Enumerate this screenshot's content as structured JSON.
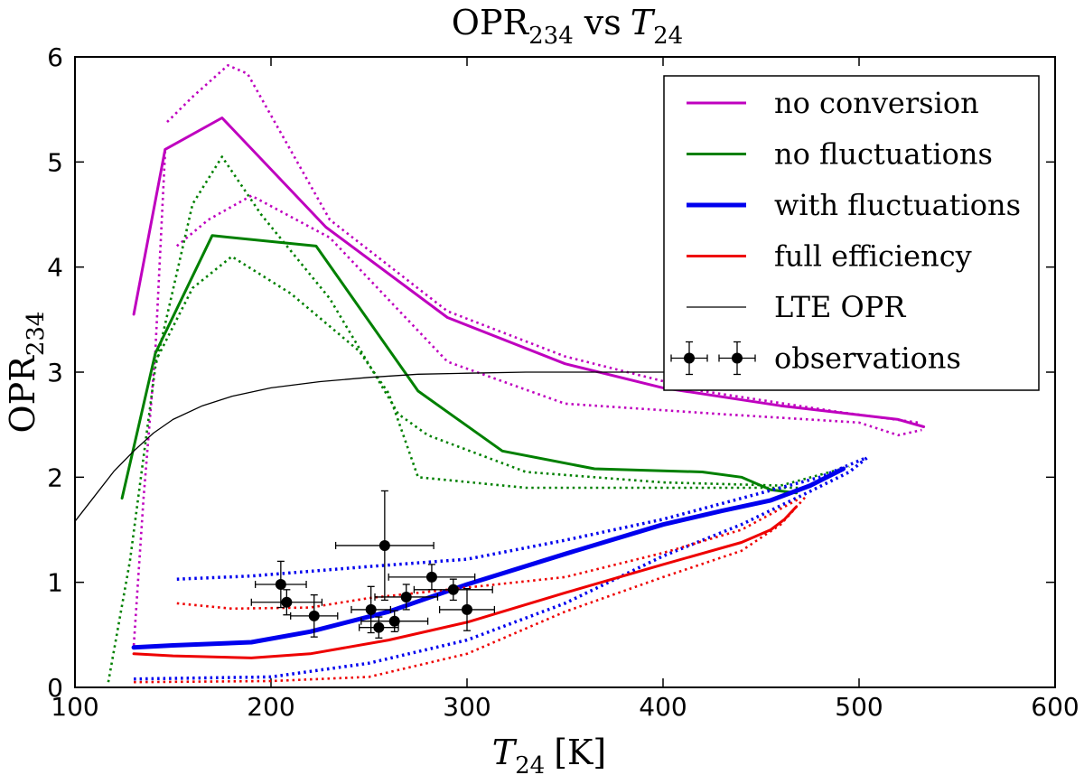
{
  "chart_data": {
    "type": "line",
    "title": "OPR",
    "title_sub": "234",
    "title_vs": "vs",
    "title_T": "T",
    "title_T_sub": "24",
    "xlabel_T": "T",
    "xlabel_sub": "24",
    "xlabel_unit": "[K]",
    "ylabel": "OPR",
    "ylabel_sub": "234",
    "xlim": [
      100,
      600
    ],
    "ylim": [
      0,
      6
    ],
    "xticks": [
      100,
      200,
      300,
      400,
      500,
      600
    ],
    "yticks": [
      0,
      1,
      2,
      3,
      4,
      5,
      6
    ],
    "grid": false,
    "legend_position": "top-right",
    "series": [
      {
        "name": "no conversion",
        "color": "#bf00bf",
        "width": 3,
        "points": [
          [
            130,
            3.55
          ],
          [
            146,
            5.12
          ],
          [
            175,
            5.42
          ],
          [
            228,
            4.38
          ],
          [
            290,
            3.52
          ],
          [
            350,
            3.08
          ],
          [
            400,
            2.85
          ],
          [
            460,
            2.68
          ],
          [
            520,
            2.55
          ],
          [
            533,
            2.48
          ]
        ],
        "dotted": [
          [
            [
              147,
              5.38
            ],
            [
              160,
              5.62
            ],
            [
              178,
              5.92
            ],
            [
              188,
              5.84
            ],
            [
              230,
              4.45
            ],
            [
              290,
              3.58
            ],
            [
              350,
              3.15
            ],
            [
              420,
              2.82
            ],
            [
              490,
              2.62
            ],
            [
              530,
              2.52
            ]
          ],
          [
            [
              152,
              4.2
            ],
            [
              168,
              4.45
            ],
            [
              190,
              4.68
            ],
            [
              230,
              4.28
            ],
            [
              290,
              3.1
            ],
            [
              350,
              2.7
            ],
            [
              430,
              2.6
            ],
            [
              500,
              2.52
            ],
            [
              520,
              2.4
            ],
            [
              532,
              2.45
            ]
          ],
          [
            [
              130,
              0.4
            ],
            [
              135,
              1.8
            ],
            [
              141,
              3.2
            ],
            [
              146,
              5.1
            ]
          ]
        ]
      },
      {
        "name": "no fluctuations",
        "color": "#008000",
        "width": 3,
        "points": [
          [
            124,
            1.8
          ],
          [
            141,
            3.18
          ],
          [
            170,
            4.3
          ],
          [
            223,
            4.2
          ],
          [
            275,
            2.82
          ],
          [
            318,
            2.25
          ],
          [
            365,
            2.08
          ],
          [
            420,
            2.05
          ],
          [
            440,
            2.0
          ],
          [
            455,
            1.88
          ],
          [
            468,
            1.85
          ]
        ],
        "dotted": [
          [
            [
              117,
              0.05
            ],
            [
              128,
              1.2
            ],
            [
              141,
              3.05
            ],
            [
              160,
              4.6
            ],
            [
              175,
              5.05
            ],
            [
              195,
              4.5
            ],
            [
              230,
              3.7
            ],
            [
              265,
              2.6
            ],
            [
              280,
              2.4
            ],
            [
              330,
              2.05
            ],
            [
              400,
              1.95
            ],
            [
              460,
              1.92
            ],
            [
              495,
              2.1
            ]
          ],
          [
            [
              141,
              3.1
            ],
            [
              160,
              3.8
            ],
            [
              180,
              4.1
            ],
            [
              210,
              3.75
            ],
            [
              245,
              3.2
            ],
            [
              260,
              2.8
            ],
            [
              275,
              2.0
            ],
            [
              330,
              1.9
            ],
            [
              400,
              1.9
            ],
            [
              450,
              1.9
            ],
            [
              470,
              1.9
            ]
          ]
        ]
      },
      {
        "name": "with fluctuations",
        "color": "#0000ee",
        "width": 5,
        "points": [
          [
            130,
            0.38
          ],
          [
            150,
            0.4
          ],
          [
            190,
            0.43
          ],
          [
            220,
            0.53
          ],
          [
            260,
            0.72
          ],
          [
            300,
            0.98
          ],
          [
            350,
            1.27
          ],
          [
            400,
            1.55
          ],
          [
            430,
            1.68
          ],
          [
            455,
            1.78
          ],
          [
            475,
            1.92
          ],
          [
            492,
            2.08
          ]
        ],
        "dotted": [
          [
            [
              152,
              1.03
            ],
            [
              190,
              1.06
            ],
            [
              250,
              1.15
            ],
            [
              300,
              1.22
            ],
            [
              350,
              1.4
            ],
            [
              400,
              1.6
            ],
            [
              450,
              1.85
            ],
            [
              480,
              2.0
            ],
            [
              503,
              2.18
            ]
          ],
          [
            [
              130,
              0.08
            ],
            [
              200,
              0.1
            ],
            [
              250,
              0.23
            ],
            [
              300,
              0.45
            ],
            [
              350,
              0.8
            ],
            [
              400,
              1.25
            ],
            [
              440,
              1.55
            ],
            [
              470,
              1.82
            ],
            [
              495,
              2.05
            ],
            [
              505,
              2.2
            ]
          ]
        ]
      },
      {
        "name": "full efficiency",
        "color": "#ee0000",
        "width": 3,
        "points": [
          [
            130,
            0.32
          ],
          [
            150,
            0.3
          ],
          [
            190,
            0.28
          ],
          [
            220,
            0.32
          ],
          [
            260,
            0.45
          ],
          [
            300,
            0.62
          ],
          [
            350,
            0.9
          ],
          [
            400,
            1.17
          ],
          [
            440,
            1.38
          ],
          [
            455,
            1.5
          ],
          [
            462,
            1.6
          ],
          [
            468,
            1.72
          ]
        ],
        "dotted": [
          [
            [
              152,
              0.8
            ],
            [
              180,
              0.75
            ],
            [
              220,
              0.76
            ],
            [
              250,
              0.85
            ],
            [
              300,
              0.95
            ],
            [
              350,
              1.05
            ],
            [
              400,
              1.28
            ],
            [
              440,
              1.5
            ],
            [
              470,
              1.8
            ]
          ],
          [
            [
              130,
              0.05
            ],
            [
              200,
              0.06
            ],
            [
              250,
              0.1
            ],
            [
              300,
              0.32
            ],
            [
              350,
              0.72
            ],
            [
              400,
              1.05
            ],
            [
              440,
              1.3
            ],
            [
              460,
              1.55
            ],
            [
              473,
              1.82
            ]
          ]
        ]
      },
      {
        "name": "LTE OPR",
        "color": "#000000",
        "width": 1.3,
        "lte": true,
        "points": [
          [
            100,
            1.58
          ],
          [
            110,
            1.82
          ],
          [
            120,
            2.06
          ],
          [
            130,
            2.25
          ],
          [
            140,
            2.42
          ],
          [
            150,
            2.55
          ],
          [
            165,
            2.68
          ],
          [
            180,
            2.77
          ],
          [
            200,
            2.85
          ],
          [
            225,
            2.91
          ],
          [
            250,
            2.95
          ],
          [
            275,
            2.98
          ],
          [
            300,
            2.99
          ],
          [
            330,
            3.0
          ],
          [
            360,
            3.0
          ],
          [
            420,
            3.0
          ]
        ],
        "dotted": []
      }
    ],
    "observations_label": "observations",
    "observations": [
      {
        "x": 205,
        "y": 0.98,
        "xerr": 13,
        "yerr": 0.22
      },
      {
        "x": 208,
        "y": 0.81,
        "xerr": 18,
        "yerr": 0.12
      },
      {
        "x": 222,
        "y": 0.68,
        "xerr": 12,
        "yerr": 0.2
      },
      {
        "x": 251,
        "y": 0.74,
        "xerr": 10,
        "yerr": 0.22
      },
      {
        "x": 255,
        "y": 0.57,
        "xerr": 10,
        "yerr": 0.1
      },
      {
        "x": 258,
        "y": 1.35,
        "xerr": 25,
        "yerr": 0.52
      },
      {
        "x": 263,
        "y": 0.63,
        "xerr": 17,
        "yerr": 0.1
      },
      {
        "x": 269,
        "y": 0.86,
        "xerr": 16,
        "yerr": 0.12
      },
      {
        "x": 282,
        "y": 1.05,
        "xerr": 22,
        "yerr": 0.12
      },
      {
        "x": 293,
        "y": 0.93,
        "xerr": 20,
        "yerr": 0.1
      },
      {
        "x": 300,
        "y": 0.74,
        "xerr": 14,
        "yerr": 0.2
      }
    ]
  }
}
